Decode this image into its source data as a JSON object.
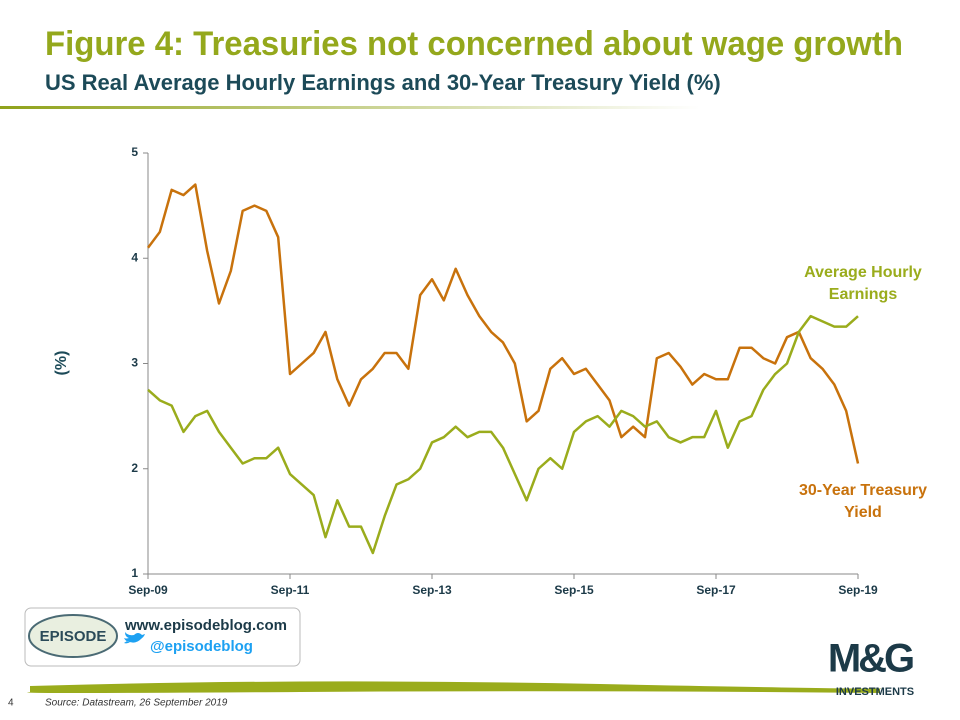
{
  "page": {
    "title": "Figure 4: Treasuries not concerned about wage growth",
    "subtitle": "US Real Average Hourly Earnings and 30-Year Treasury Yield (%)",
    "logo_text": "EPISODE",
    "website": "www.episodeblog.com",
    "twitter": "@episodeblog",
    "brand": "M&G",
    "brand_sub": "INVESTMENTS",
    "page_number": "4",
    "source": "Source: Datastream, 26 September 2019"
  },
  "chart_data": {
    "type": "line",
    "y_label": "(%)",
    "categories": [
      "Sep-09",
      null,
      null,
      null,
      null,
      null,
      null,
      null,
      null,
      null,
      null,
      null,
      "Sep-11",
      null,
      null,
      null,
      null,
      null,
      null,
      null,
      null,
      null,
      null,
      null,
      "Sep-13",
      null,
      null,
      null,
      null,
      null,
      null,
      null,
      null,
      null,
      null,
      null,
      "Sep-15",
      null,
      null,
      null,
      null,
      null,
      null,
      null,
      null,
      null,
      null,
      null,
      "Sep-17",
      null,
      null,
      null,
      null,
      null,
      null,
      null,
      null,
      null,
      null,
      null,
      "Sep-19"
    ],
    "ylim": [
      1,
      5
    ],
    "yticks": [
      1,
      2,
      3,
      4,
      5
    ],
    "series": [
      {
        "name": "30-Year Treasury Yield",
        "color": "#c8720c",
        "values": [
          4.1,
          4.25,
          4.65,
          4.6,
          4.7,
          4.07,
          3.57,
          3.88,
          4.45,
          4.5,
          4.45,
          4.2,
          2.9,
          3.0,
          3.1,
          3.3,
          2.85,
          2.6,
          2.85,
          2.95,
          3.1,
          3.1,
          2.95,
          3.65,
          3.8,
          3.6,
          3.9,
          3.65,
          3.45,
          3.3,
          3.2,
          3.0,
          2.45,
          2.55,
          2.95,
          3.05,
          2.9,
          2.95,
          2.8,
          2.65,
          2.3,
          2.4,
          2.3,
          3.05,
          3.1,
          2.97,
          2.8,
          2.9,
          2.85,
          2.85,
          3.15,
          3.15,
          3.05,
          3.0,
          3.25,
          3.3,
          3.05,
          2.95,
          2.8,
          2.55,
          2.05
        ]
      },
      {
        "name": "Average Hourly Earnings",
        "color": "#9aac1c",
        "values": [
          2.75,
          2.65,
          2.6,
          2.35,
          2.5,
          2.55,
          2.35,
          2.2,
          2.05,
          2.1,
          2.1,
          2.2,
          1.95,
          1.85,
          1.75,
          1.35,
          1.7,
          1.45,
          1.45,
          1.2,
          1.55,
          1.85,
          1.9,
          2.0,
          2.25,
          2.3,
          2.4,
          2.3,
          2.35,
          2.35,
          2.2,
          1.95,
          1.7,
          2.0,
          2.1,
          2.0,
          2.35,
          2.45,
          2.5,
          2.4,
          2.55,
          2.5,
          2.4,
          2.45,
          2.3,
          2.25,
          2.3,
          2.3,
          2.55,
          2.2,
          2.45,
          2.5,
          2.75,
          2.9,
          3.0,
          3.3,
          3.45,
          3.4,
          3.35,
          3.35,
          3.45
        ]
      }
    ]
  }
}
